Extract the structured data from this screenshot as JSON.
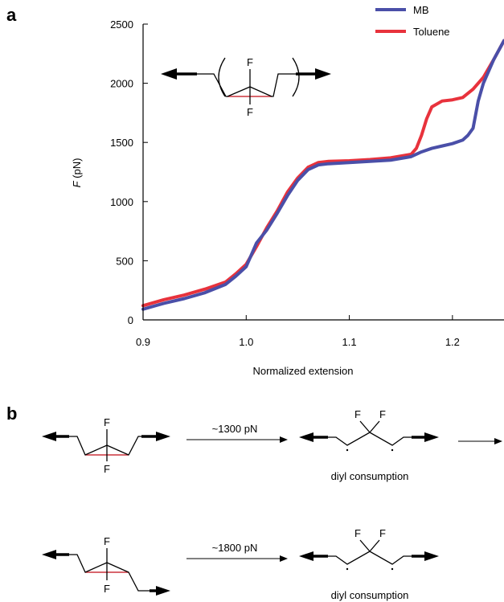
{
  "panels": {
    "a": "a",
    "b": "b"
  },
  "chart_data": {
    "type": "line",
    "title": "",
    "xlabel": "Normalized extension",
    "ylabel_italic": "F",
    "ylabel_unit": " (pN)",
    "xlim": [
      0.9,
      1.25
    ],
    "ylim": [
      0,
      2500
    ],
    "x_ticks": [
      0.9,
      1.0,
      1.1,
      1.2
    ],
    "x_tick_labels": [
      "0.9",
      "1.0",
      "1.1",
      "1.2"
    ],
    "y_ticks": [
      0,
      500,
      1000,
      1500,
      2000,
      2500
    ],
    "y_tick_labels": [
      "0",
      "500",
      "1000",
      "1500",
      "2000",
      "2500"
    ],
    "grid": false,
    "legend_position": "top-right",
    "series": [
      {
        "name": "MB",
        "color": "#4a4fa8",
        "x": [
          0.9,
          0.92,
          0.94,
          0.96,
          0.98,
          0.99,
          1.0,
          1.005,
          1.01,
          1.02,
          1.03,
          1.04,
          1.05,
          1.06,
          1.07,
          1.08,
          1.1,
          1.12,
          1.14,
          1.16,
          1.17,
          1.18,
          1.19,
          1.2,
          1.21,
          1.215,
          1.22,
          1.225,
          1.23,
          1.24,
          1.25
        ],
        "y": [
          90,
          140,
          180,
          230,
          300,
          370,
          450,
          550,
          650,
          760,
          900,
          1050,
          1180,
          1270,
          1310,
          1320,
          1330,
          1340,
          1350,
          1380,
          1420,
          1450,
          1470,
          1490,
          1520,
          1560,
          1620,
          1850,
          2000,
          2200,
          2360
        ]
      },
      {
        "name": "Toluene",
        "color": "#e8323c",
        "x": [
          0.9,
          0.92,
          0.94,
          0.96,
          0.98,
          0.99,
          1.0,
          1.01,
          1.02,
          1.03,
          1.04,
          1.05,
          1.06,
          1.07,
          1.08,
          1.1,
          1.12,
          1.14,
          1.16,
          1.165,
          1.17,
          1.175,
          1.18,
          1.19,
          1.2,
          1.21,
          1.22,
          1.23,
          1.24,
          1.25
        ],
        "y": [
          120,
          170,
          210,
          260,
          320,
          390,
          470,
          620,
          780,
          920,
          1080,
          1200,
          1290,
          1330,
          1340,
          1345,
          1355,
          1370,
          1400,
          1450,
          1560,
          1700,
          1800,
          1850,
          1860,
          1880,
          1950,
          2050,
          2200,
          2360
        ]
      }
    ]
  },
  "inset": {
    "top_sub": "F",
    "bottom_sub": "F"
  },
  "scheme": {
    "row1": {
      "cond": "~1300 pN",
      "note": "diyl consumption",
      "f_top": "F",
      "f_bottom": "F",
      "f_left": "F",
      "f_right": "F"
    },
    "row2": {
      "cond": "~1800 pN",
      "note": "diyl consumption",
      "f_top": "F",
      "f_bottom": "F",
      "f_left": "F",
      "f_right": "F"
    }
  }
}
